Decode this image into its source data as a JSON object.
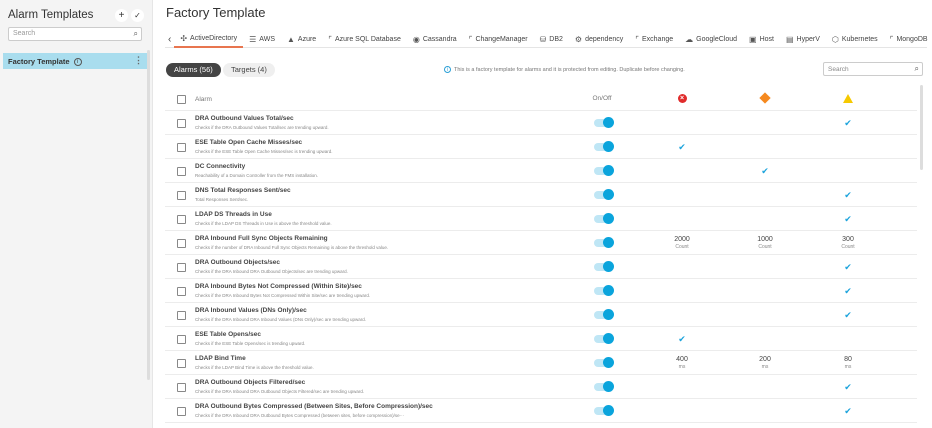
{
  "sidebar": {
    "title": "Alarm Templates",
    "add_icon": "+",
    "check_icon": "✓",
    "search_placeholder": "Search",
    "items": [
      {
        "label": "Factory Template",
        "info_icon": "i"
      }
    ]
  },
  "header": {
    "title": "Factory Template"
  },
  "tabs": [
    {
      "label": "ActiveDirectory",
      "icon": "✣"
    },
    {
      "label": "AWS",
      "icon": "☰"
    },
    {
      "label": "Azure",
      "icon": "▲"
    },
    {
      "label": "Azure SQL Database",
      "icon": "⌜"
    },
    {
      "label": "Cassandra",
      "icon": "◉"
    },
    {
      "label": "ChangeManager",
      "icon": "⌜"
    },
    {
      "label": "DB2",
      "icon": "⛁"
    },
    {
      "label": "dependency",
      "icon": "⚙"
    },
    {
      "label": "Exchange",
      "icon": "⌜"
    },
    {
      "label": "GoogleCloud",
      "icon": "☁"
    },
    {
      "label": "Host",
      "icon": "▣"
    },
    {
      "label": "HyperV",
      "icon": "▤"
    },
    {
      "label": "Kubernetes",
      "icon": "⬡"
    },
    {
      "label": "MongoDB",
      "icon": "⌜"
    }
  ],
  "tabs_more": "··· ▾",
  "pills": {
    "alarms": "Alarms (56)",
    "targets": "Targets (4)"
  },
  "notice": "This is a factory template for alarms and it is protected from editing. Duplicate before changing.",
  "search_placeholder": "Search",
  "columns": {
    "alarm": "Alarm",
    "onoff": "On/Off",
    "critical": "critical-icon",
    "major": "major-icon",
    "warning": "warning-icon"
  },
  "colors": {
    "accent": "#0aa4dc",
    "critical": "#e02b2b",
    "major": "#f5891f",
    "warning": "#f6c900",
    "tab_active": "#e8754f"
  },
  "rows": [
    {
      "name": "DRA Outbound Values Total/sec",
      "desc": "Checks if the DRA Outbound Values Total/sec are trending upward.",
      "on": true,
      "crit": "",
      "maj": "",
      "warn": "✔"
    },
    {
      "name": "ESE Table Open Cache Misses/sec",
      "desc": "Checks if the ESE Table Open Cache Misses/sec is trending upward.",
      "on": true,
      "crit": "✔",
      "maj": "",
      "warn": ""
    },
    {
      "name": "DC Connectivity",
      "desc": "Reachability of a Domain Controller from the FMS installation.",
      "on": true,
      "crit": "",
      "maj": "✔",
      "warn": ""
    },
    {
      "name": "DNS Total Responses Sent/sec",
      "desc": "Total Responses Sent/sec.",
      "on": true,
      "crit": "",
      "maj": "",
      "warn": "✔"
    },
    {
      "name": "LDAP DS Threads in Use",
      "desc": "Checks if the LDAP DS Threads in Use is above the threshold value.",
      "on": true,
      "crit": "",
      "maj": "",
      "warn": "✔"
    },
    {
      "name": "DRA Inbound Full Sync Objects Remaining",
      "desc": "Checks if the number of DRA Inbound Full Sync Objects Remaining is above the threshold value.",
      "on": true,
      "crit": "2000",
      "maj": "1000",
      "warn": "300",
      "unit": "Count"
    },
    {
      "name": "DRA Outbound Objects/sec",
      "desc": "Checks if the DRA Inbound DRA Outbound Objects/sec are trending upward.",
      "on": true,
      "crit": "",
      "maj": "",
      "warn": "✔"
    },
    {
      "name": "DRA Inbound Bytes Not Compressed (Within Site)/sec",
      "desc": "Checks if the DRA Inbound Bytes Not Compressed Within Site/sec are trending upward.",
      "on": true,
      "crit": "",
      "maj": "",
      "warn": "✔"
    },
    {
      "name": "DRA Inbound Values (DNs Only)/sec",
      "desc": "Checks if the DRA Inbound DRA Inbound Values (DNs Only)/sec are trending upward.",
      "on": true,
      "crit": "",
      "maj": "",
      "warn": "✔"
    },
    {
      "name": "ESE Table Opens/sec",
      "desc": "Checks if the ESE Table Opens/sec is trending upward.",
      "on": true,
      "crit": "✔",
      "maj": "",
      "warn": ""
    },
    {
      "name": "LDAP Bind Time",
      "desc": "Checks if the LDAP Bind Time is above the threshold value.",
      "on": true,
      "crit": "400",
      "maj": "200",
      "warn": "80",
      "unit": "ms"
    },
    {
      "name": "DRA Outbound Objects Filtered/sec",
      "desc": "Checks if the DRA Inbound DRA Outbound Objects Filtered/sec are trending upward.",
      "on": true,
      "crit": "",
      "maj": "",
      "warn": "✔"
    },
    {
      "name": "DRA Outbound Bytes Compressed (Between Sites, Before Compression)/sec",
      "desc": "Checks if the DRA Inbound DRA Outbound Bytes Compressed (between sites, before compression)/se···",
      "on": true,
      "crit": "",
      "maj": "",
      "warn": "✔"
    }
  ]
}
